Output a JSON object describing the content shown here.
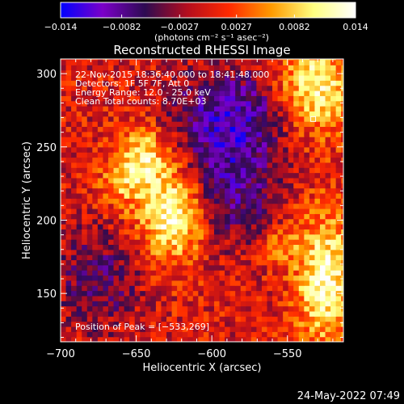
{
  "chart_data": {
    "type": "heatmap",
    "title": "Reconstructed RHESSI Image",
    "colorbar": {
      "range": [
        -0.014,
        0.014
      ],
      "ticks": [
        "−0.014",
        "−0.0082",
        "−0.0027",
        "0.0027",
        "0.0082",
        "0.014"
      ],
      "unit": "(photons cm⁻² s⁻¹ asec⁻²)",
      "colormap": [
        "#0000ff",
        "#7b00c8",
        "#2d0b52",
        "#b30d1e",
        "#ff2a00",
        "#ff9a00",
        "#ffff80",
        "#ffffff"
      ]
    },
    "xlabel": "Heliocentric X (arcsec)",
    "ylabel": "Heliocentric Y (arcsec)",
    "xlim": [
      -700,
      -513
    ],
    "ylim": [
      117,
      310
    ],
    "xticks": [
      -700,
      -650,
      -600,
      -550
    ],
    "xtick_labels": [
      "−700",
      "−650",
      "−600",
      "−550"
    ],
    "yticks": [
      150,
      200,
      250,
      300
    ],
    "ytick_labels": [
      "150",
      "200",
      "250",
      "300"
    ],
    "annotations": [
      "22-Nov-2015 18:36:40.000 to 18:41:48.000",
      "Detectors: 1F 5F 7F, Att 0",
      "Energy Range: 12.0 - 25.0 keV",
      "Clean     Total counts: 8.70E+03"
    ],
    "peak_label": "Position of Peak = [−533,269]",
    "peak": [
      -533,
      269
    ],
    "sources": [
      {
        "x": -625,
        "y": 205,
        "sx": 16,
        "sy": 22,
        "amp": 0.014
      },
      {
        "x": -645,
        "y": 245,
        "sx": 12,
        "sy": 14,
        "amp": 0.009
      },
      {
        "x": -660,
        "y": 225,
        "sx": 10,
        "sy": 12,
        "amp": 0.006
      },
      {
        "x": -533,
        "y": 290,
        "sx": 18,
        "sy": 22,
        "amp": 0.012
      },
      {
        "x": -525,
        "y": 160,
        "sx": 14,
        "sy": 32,
        "amp": 0.012
      },
      {
        "x": -555,
        "y": 182,
        "sx": 8,
        "sy": 8,
        "amp": 0.006
      },
      {
        "x": -590,
        "y": 225,
        "sx": 22,
        "sy": 28,
        "amp": -0.009
      },
      {
        "x": -585,
        "y": 275,
        "sx": 30,
        "sy": 20,
        "amp": -0.009
      },
      {
        "x": -675,
        "y": 160,
        "sx": 20,
        "sy": 25,
        "amp": -0.006
      }
    ]
  },
  "timestamp": "24-May-2022 07:49"
}
